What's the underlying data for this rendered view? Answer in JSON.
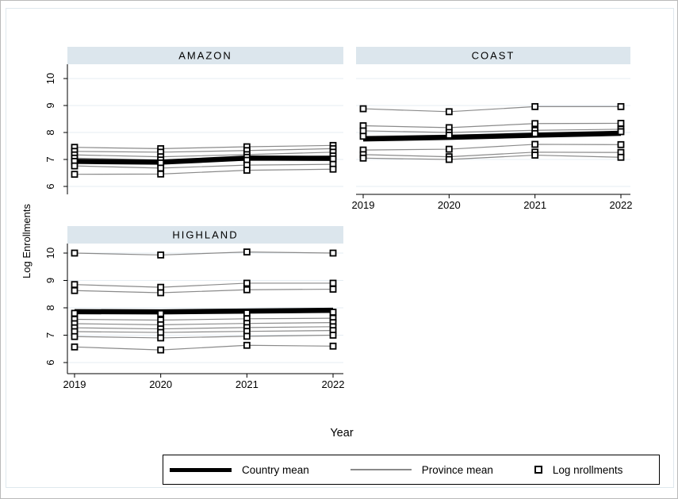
{
  "figure": {
    "background": "#ffffff",
    "inner_border_color": "#dfe8ee",
    "outer_border_color": "#b9b9b9"
  },
  "chart_data": {
    "type": "line",
    "xlabel": "Year",
    "ylabel": "Log Enrollments",
    "x": [
      2019,
      2020,
      2021,
      2022
    ],
    "yticks": [
      6,
      7,
      8,
      9,
      10
    ],
    "ylim": [
      5.7,
      10.4
    ],
    "grid": true,
    "colors": {
      "panel_header": "#dce6ed",
      "gridline": "#e6edf3",
      "axis": "#000000",
      "country_mean": "#000000",
      "province_mean": "#8a8a8a",
      "marker_fill": "#ffffff",
      "marker_stroke": "#000000"
    },
    "panels": [
      {
        "title": "AMAZON",
        "row": 0,
        "col": 0,
        "show_x_axis": false,
        "show_y_axis": true,
        "country_mean": [
          6.93,
          6.9,
          7.05,
          7.04
        ],
        "provinces": [
          [
            7.45,
            7.4,
            7.47,
            7.52
          ],
          [
            7.3,
            7.27,
            7.33,
            7.4
          ],
          [
            7.17,
            7.1,
            7.18,
            7.27
          ],
          [
            7.05,
            6.98,
            7.08,
            7.13
          ],
          [
            6.93,
            6.87,
            6.97,
            7.02
          ],
          [
            6.76,
            6.68,
            6.79,
            6.82
          ],
          [
            6.45,
            6.46,
            6.6,
            6.64
          ]
        ]
      },
      {
        "title": "COAST",
        "row": 0,
        "col": 1,
        "show_x_axis": true,
        "show_y_axis": false,
        "country_mean": [
          7.76,
          7.82,
          7.9,
          7.97
        ],
        "provinces": [
          [
            8.88,
            8.77,
            8.96,
            8.96
          ],
          [
            8.25,
            8.18,
            8.33,
            8.34
          ],
          [
            8.06,
            8.0,
            8.08,
            8.12
          ],
          [
            7.86,
            7.9,
            7.96,
            8.03
          ],
          [
            7.35,
            7.38,
            7.56,
            7.55
          ],
          [
            7.18,
            7.1,
            7.27,
            7.26
          ],
          [
            7.05,
            7.0,
            7.16,
            7.08
          ]
        ]
      },
      {
        "title": "HIGHLAND",
        "row": 1,
        "col": 0,
        "show_x_axis": true,
        "show_y_axis": true,
        "country_mean": [
          7.86,
          7.85,
          7.88,
          7.91
        ],
        "provinces": [
          [
            10.0,
            9.93,
            10.04,
            10.0
          ],
          [
            8.85,
            8.75,
            8.9,
            8.9
          ],
          [
            8.63,
            8.55,
            8.66,
            8.68
          ],
          [
            7.8,
            7.79,
            7.81,
            7.84
          ],
          [
            7.58,
            7.55,
            7.6,
            7.62
          ],
          [
            7.42,
            7.38,
            7.43,
            7.46
          ],
          [
            7.27,
            7.23,
            7.28,
            7.31
          ],
          [
            7.13,
            7.1,
            7.14,
            7.17
          ],
          [
            6.95,
            6.9,
            6.96,
            7.0
          ],
          [
            6.57,
            6.46,
            6.63,
            6.6
          ]
        ]
      }
    ],
    "legend": {
      "position": "bottom",
      "items": [
        {
          "label": "Country mean",
          "symbol": "thick-line"
        },
        {
          "label": "Province mean",
          "symbol": "thin-line"
        },
        {
          "label": "Log nrollments",
          "symbol": "square"
        }
      ]
    }
  }
}
